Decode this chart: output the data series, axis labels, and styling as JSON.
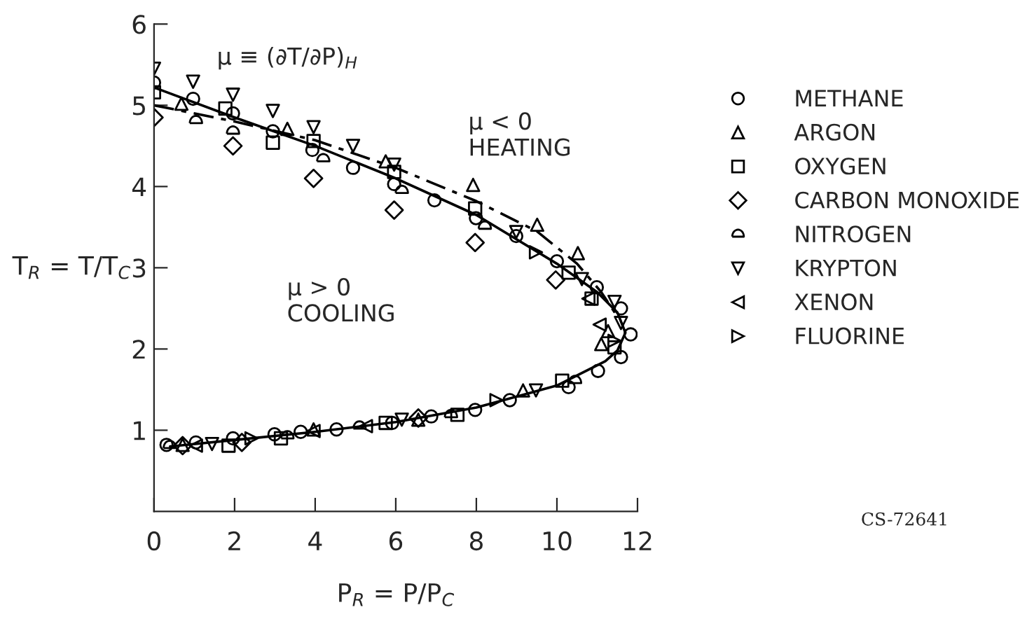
{
  "chart_data": {
    "type": "scatter",
    "xlabel": "P$_{R}$ = P/P$_{C}$",
    "ylabel": "T$_{R}$ = T/T$_{C}$",
    "xlim": [
      0,
      12
    ],
    "ylim": [
      0,
      6
    ],
    "xticks": [
      0,
      2,
      4,
      6,
      8,
      10,
      12
    ],
    "yticks": [
      1,
      2,
      3,
      4,
      5,
      6
    ],
    "grid": false,
    "legend": "right",
    "annotations": [
      "μ ≡ (∂T/∂P)$_{H}$",
      "μ < 0\nHEATING",
      "μ > 0\nCOOLING",
      "CS-72641"
    ],
    "series": [
      {
        "name": "METHANE",
        "marker": "circle",
        "color": "#000000",
        "x": [
          0.0,
          0.97,
          1.96,
          2.95,
          3.93,
          4.94,
          5.96,
          6.96,
          7.99,
          8.99,
          10.0,
          10.99,
          11.59,
          11.83,
          11.59,
          11.02,
          10.29,
          8.83,
          7.97,
          6.88,
          5.91,
          4.53,
          3.64,
          2.99,
          1.96,
          1.04,
          0.31
        ],
        "values": [
          5.28,
          5.08,
          4.9,
          4.68,
          4.45,
          4.23,
          4.03,
          3.83,
          3.61,
          3.39,
          3.08,
          2.76,
          2.5,
          2.18,
          1.9,
          1.73,
          1.53,
          1.37,
          1.25,
          1.17,
          1.09,
          1.01,
          0.98,
          0.95,
          0.9,
          0.85,
          0.82
        ]
      },
      {
        "name": "ARGON",
        "marker": "triangle",
        "color": "#000000",
        "x": [
          0.68,
          3.31,
          5.75,
          7.92,
          9.51,
          10.52,
          11.27,
          11.1,
          9.16,
          6.56,
          3.96,
          0.71
        ],
        "values": [
          5.02,
          4.71,
          4.31,
          4.02,
          3.53,
          3.18,
          2.22,
          2.06,
          1.49,
          1.13,
          1.01,
          0.82
        ]
      },
      {
        "name": "OXYGEN",
        "marker": "square",
        "color": "#000000",
        "x": [
          0.0,
          1.77,
          2.95,
          3.96,
          5.96,
          7.97,
          10.29,
          10.86,
          11.43,
          10.13,
          7.53,
          5.75,
          3.15,
          1.85
        ],
        "values": [
          5.16,
          4.96,
          4.54,
          4.56,
          4.18,
          3.73,
          2.94,
          2.62,
          2.02,
          1.61,
          1.19,
          1.09,
          0.9,
          0.81
        ]
      },
      {
        "name": "CARBON MONOXIDE",
        "marker": "diamond",
        "color": "#000000",
        "x": [
          0.0,
          1.96,
          3.96,
          5.96,
          7.97,
          9.97,
          6.56,
          2.18,
          0.71
        ],
        "values": [
          4.85,
          4.5,
          4.1,
          3.71,
          3.31,
          2.85,
          1.15,
          0.85,
          0.81
        ]
      },
      {
        "name": "NITROGEN",
        "marker": "semicircle",
        "color": "#000000",
        "x": [
          1.04,
          1.96,
          4.2,
          6.15,
          8.21,
          10.45,
          7.37,
          5.1,
          3.31,
          0.39
        ],
        "values": [
          4.81,
          4.68,
          4.34,
          3.95,
          3.51,
          1.61,
          1.19,
          1.05,
          0.93,
          0.81
        ]
      },
      {
        "name": "KRYPTON",
        "marker": "triangle_down",
        "color": "#000000",
        "x": [
          0.0,
          0.97,
          1.96,
          2.95,
          3.96,
          4.94,
          5.96,
          8.99,
          10.62,
          11.43,
          11.59,
          9.48,
          6.15,
          1.44
        ],
        "values": [
          5.45,
          5.29,
          5.13,
          4.93,
          4.73,
          4.5,
          4.27,
          3.44,
          2.86,
          2.58,
          2.32,
          1.49,
          1.13,
          0.83
        ]
      },
      {
        "name": "XENON",
        "marker": "triangle_left",
        "color": "#000000",
        "x": [
          10.78,
          11.06,
          5.26,
          3.96,
          1.04
        ],
        "values": [
          2.62,
          2.3,
          1.05,
          0.99,
          0.81
        ]
      },
      {
        "name": "FLUORINE",
        "marker": "triangle_right",
        "color": "#000000",
        "x": [
          9.48,
          11.43,
          8.5,
          2.42
        ],
        "values": [
          3.19,
          2.1,
          1.37,
          0.9
        ]
      },
      {
        "type": "line",
        "line_style": "solid",
        "color": "#000000",
        "x": [
          0.0,
          2.0,
          4.0,
          6.0,
          8.0,
          10.0,
          11.0,
          11.5,
          11.7,
          11.5,
          11.2,
          10.0,
          8.0,
          6.0,
          4.0,
          2.0,
          0.4
        ],
        "values": [
          5.22,
          4.85,
          4.5,
          4.1,
          3.65,
          3.05,
          2.7,
          2.45,
          2.2,
          1.98,
          1.85,
          1.55,
          1.28,
          1.1,
          0.98,
          0.88,
          0.8
        ]
      },
      {
        "type": "line",
        "line_style": "dashed",
        "color": "#000000",
        "x": [
          0.0,
          2.0,
          4.0,
          6.0,
          8.0,
          9.5,
          10.5,
          11.1,
          11.5
        ],
        "values": [
          5.0,
          4.8,
          4.57,
          4.23,
          3.82,
          3.45,
          3.05,
          2.7,
          2.4
        ]
      }
    ]
  }
}
